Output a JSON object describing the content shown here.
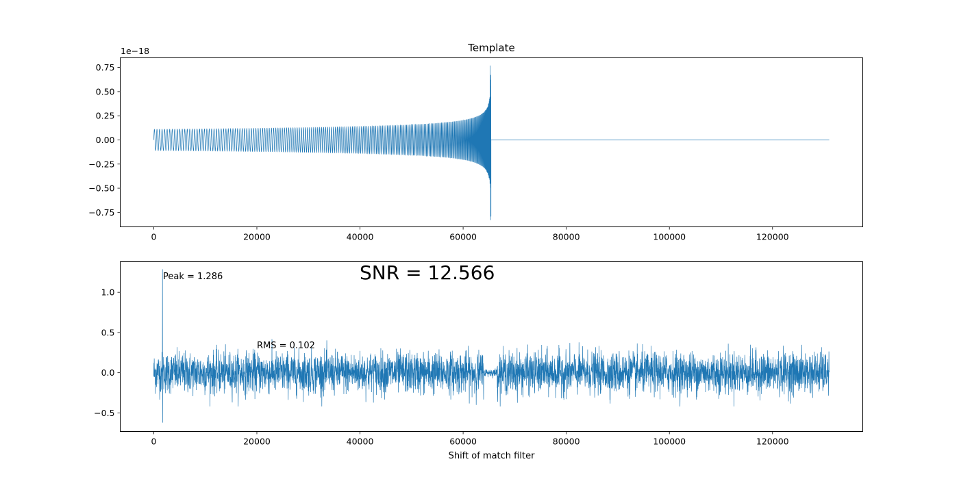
{
  "chart_data": [
    {
      "type": "line",
      "title": "Template",
      "xlabel": "",
      "ylabel": "",
      "offset_text": "1e−18",
      "xlim": [
        -6500,
        137500
      ],
      "ylim": [
        -0.9,
        0.85
      ],
      "xticks": [
        0,
        20000,
        40000,
        60000,
        80000,
        100000,
        120000
      ],
      "yticks": [
        0.75,
        0.5,
        0.25,
        0.0,
        -0.25,
        -0.5,
        -0.75
      ],
      "ytick_labels": [
        "0.75",
        "0.50",
        "0.25",
        "0.00",
        "−0.25",
        "−0.50",
        "−0.75"
      ],
      "grid": false,
      "series": [
        {
          "color": "#1f77b4",
          "description_points": {
            "x_start": 0,
            "merger_x": 65400,
            "x_end": 131000,
            "amplitude_start": 0.11,
            "amplitude_peak_max": 0.77,
            "amplitude_peak_min": -0.83,
            "value_after_merger": 0.0
          }
        }
      ]
    },
    {
      "type": "line",
      "title": "",
      "xlabel": "Shift of match filter",
      "ylabel": "",
      "xlim": [
        -6500,
        137500
      ],
      "ylim": [
        -0.73,
        1.38
      ],
      "xticks": [
        0,
        20000,
        40000,
        60000,
        80000,
        100000,
        120000
      ],
      "yticks": [
        1.0,
        0.5,
        0.0,
        -0.5
      ],
      "ytick_labels": [
        "1.0",
        "0.5",
        "0.0",
        "−0.5"
      ],
      "grid": false,
      "series": [
        {
          "color": "#1f77b4",
          "description_points": {
            "x_start": 0,
            "x_end": 131000,
            "peak_x": 1700,
            "peak_value": 1.286,
            "peak_min": -0.62,
            "noise_rms": 0.102,
            "quiet_region": [
              64000,
              66500
            ]
          }
        }
      ],
      "annotations": {
        "peak": "Peak = 1.286",
        "rms": "RMS = 0.102",
        "snr": "SNR = 12.566"
      }
    }
  ]
}
